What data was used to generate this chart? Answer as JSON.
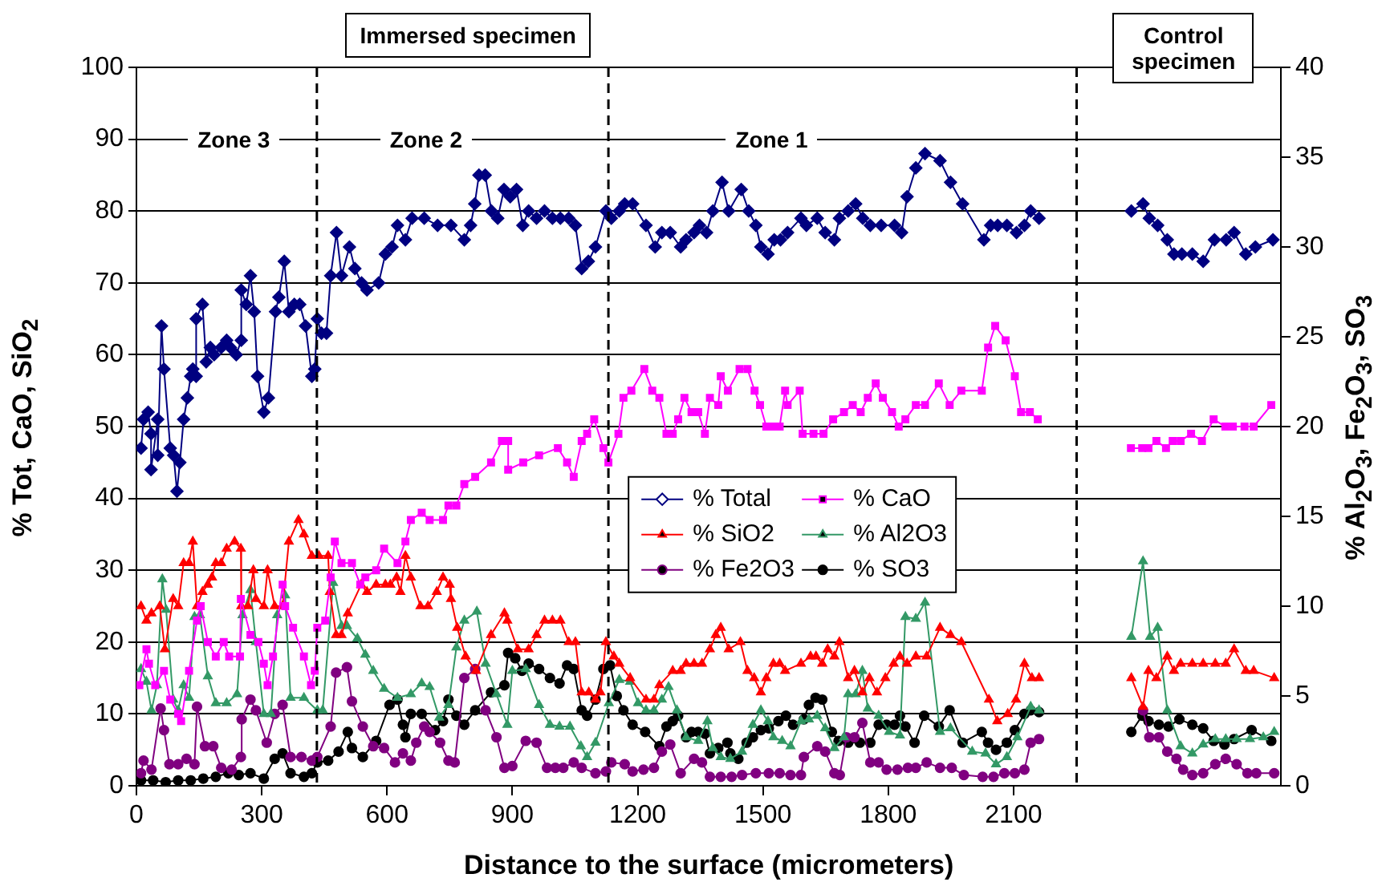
{
  "chart_data": {
    "type": "line",
    "xlabel": "Distance to the surface (micrometers)",
    "ylabel": "% Tot, CaO, SiO$_{2}$",
    "y2label": "% Al$_{2}$O$_{3}$, Fe$_{2}$O$_{3}$, SO$_{3}$",
    "xlim": [
      0,
      2740
    ],
    "xticks": [
      0,
      300,
      600,
      900,
      1200,
      1500,
      1800,
      2100
    ],
    "ylim": [
      0,
      100
    ],
    "yticks": [
      0,
      10,
      20,
      30,
      40,
      50,
      60,
      70,
      80,
      90,
      100
    ],
    "y2lim": [
      0,
      40
    ],
    "y2ticks": [
      0,
      5,
      10,
      15,
      20,
      25,
      30,
      35,
      40
    ],
    "grid": "y",
    "legend": "center",
    "ref_lines": [
      {
        "axis": "x",
        "value": 432,
        "color": "#000000",
        "line_style": "dashed"
      },
      {
        "axis": "x",
        "value": 1130,
        "color": "#000000",
        "line_style": "dashed"
      },
      {
        "axis": "x",
        "value": 2251,
        "color": "#000000",
        "line_style": "dashed"
      }
    ],
    "annotations": [
      "Immersed specimen",
      "Control specimen",
      "Zone 3",
      "Zone 2",
      "Zone 1"
    ],
    "series": [
      {
        "name": "% Total",
        "color": "#000080",
        "marker": "diamond",
        "x": [
          11,
          17,
          28,
          35,
          35,
          51,
          51,
          60,
          66,
          81,
          89,
          97,
          104,
          113,
          122,
          130,
          135,
          143,
          143,
          158,
          167,
          177,
          186,
          203,
          216,
          225,
          239,
          251,
          251,
          263,
          273,
          282,
          290,
          305,
          316,
          333,
          341,
          354,
          365,
          378,
          391,
          405,
          420,
          427,
          433,
          443,
          455,
          465,
          479,
          491,
          510,
          523,
          539,
          552,
          580,
          596,
          612,
          625,
          644,
          660,
          689,
          721,
          753,
          785,
          800,
          810,
          820,
          835,
          850,
          865,
          880,
          895,
          910,
          925,
          939,
          958,
          977,
          996,
          1015,
          1035,
          1051,
          1066,
          1082,
          1099,
          1124,
          1137,
          1156,
          1169,
          1188,
          1220,
          1242,
          1258,
          1278,
          1303,
          1316,
          1335,
          1348,
          1365,
          1380,
          1402,
          1418,
          1448,
          1466,
          1483,
          1495,
          1512,
          1527,
          1542,
          1559,
          1591,
          1604,
          1630,
          1649,
          1671,
          1683,
          1704,
          1722,
          1739,
          1757,
          1783,
          1815,
          1832,
          1845,
          1866,
          1888,
          1924,
          1949,
          1978,
          2029,
          2045,
          2062,
          2084,
          2107,
          2126,
          2141,
          2161,
          2250,
          2382,
          2410,
          2425,
          2445,
          2468,
          2484,
          2503,
          2528,
          2554,
          2581,
          2609,
          2628,
          2656,
          2679,
          2721
        ],
        "values": [
          47,
          51,
          52,
          49,
          44,
          51,
          46,
          64,
          58,
          47,
          46,
          41,
          45,
          51,
          54,
          57,
          58,
          57,
          65,
          67,
          59,
          61,
          60,
          61,
          62,
          61,
          60,
          62,
          69,
          67,
          71,
          66,
          57,
          52,
          54,
          66,
          68,
          73,
          66,
          67,
          67,
          64,
          57,
          58,
          65,
          63,
          63,
          71,
          77,
          71,
          75,
          72,
          70,
          69,
          70,
          74,
          75,
          78,
          76,
          79,
          79,
          78,
          78,
          76,
          78,
          81,
          85,
          85,
          80,
          79,
          83,
          82,
          83,
          78,
          80,
          79,
          80,
          79,
          79,
          79,
          78,
          72,
          73,
          75,
          80,
          79,
          80,
          81,
          81,
          78,
          75,
          77,
          77,
          75,
          76,
          77,
          78,
          77,
          80,
          84,
          80,
          83,
          80,
          78,
          75,
          74,
          76,
          76,
          77,
          79,
          78,
          79,
          77,
          76,
          79,
          80,
          81,
          79,
          78,
          78,
          78,
          77,
          82,
          86,
          88,
          87,
          84,
          81,
          76,
          78,
          78,
          78,
          77,
          78,
          80,
          79,
          null,
          80,
          81,
          79,
          78,
          76,
          74,
          74,
          74,
          73,
          76,
          76,
          77,
          74,
          75,
          76
        ]
      },
      {
        "name": "% CaO",
        "color": "#ff00ff",
        "marker": "square",
        "x": [
          7,
          24,
          30,
          45,
          66,
          81,
          100,
          107,
          126,
          145,
          154,
          171,
          190,
          209,
          222,
          248,
          250,
          273,
          292,
          305,
          314,
          327,
          350,
          356,
          375,
          401,
          418,
          427,
          433,
          452,
          465,
          475,
          491,
          516,
          536,
          548,
          574,
          593,
          625,
          644,
          657,
          683,
          702,
          734,
          747,
          766,
          785,
          811,
          849,
          875,
          890,
          890,
          926,
          964,
          1009,
          1031,
          1047,
          1066,
          1079,
          1096,
          1118,
          1130,
          1154,
          1166,
          1185,
          1216,
          1235,
          1252,
          1269,
          1284,
          1297,
          1312,
          1329,
          1345,
          1361,
          1373,
          1393,
          1399,
          1416,
          1444,
          1463,
          1480,
          1493,
          1508,
          1525,
          1540,
          1553,
          1559,
          1588,
          1595,
          1621,
          1645,
          1668,
          1694,
          1715,
          1734,
          1751,
          1770,
          1787,
          1809,
          1825,
          1841,
          1866,
          1888,
          1921,
          1947,
          1975,
          2024,
          2039,
          2056,
          2081,
          2103,
          2118,
          2139,
          2158,
          2250,
          2381,
          2408,
          2423,
          2442,
          2465,
          2481,
          2500,
          2525,
          2551,
          2579,
          2607,
          2625,
          2653,
          2675,
          2717
        ],
        "values": [
          14,
          19,
          17,
          14,
          16,
          12,
          10,
          9,
          16,
          23,
          25,
          20,
          18,
          20,
          18,
          18,
          26,
          21,
          20,
          17,
          14,
          18,
          28,
          25,
          22,
          18,
          14,
          16,
          22,
          23,
          29,
          34,
          31,
          31,
          28,
          29,
          30,
          33,
          31,
          34,
          37,
          38,
          37,
          37,
          39,
          39,
          42,
          43,
          45,
          48,
          48,
          44,
          45,
          46,
          47,
          45,
          43,
          48,
          49,
          51,
          47,
          45,
          49,
          54,
          55,
          58,
          55,
          54,
          49,
          49,
          51,
          54,
          52,
          52,
          49,
          54,
          53,
          57,
          55,
          58,
          58,
          55,
          53,
          50,
          50,
          50,
          55,
          53,
          55,
          49,
          49,
          49,
          51,
          52,
          53,
          52,
          54,
          56,
          54,
          52,
          50,
          51,
          53,
          53,
          56,
          53,
          55,
          55,
          61,
          64,
          62,
          57,
          52,
          52,
          51,
          null,
          47,
          47,
          47,
          48,
          47,
          48,
          48,
          49,
          48,
          51,
          50,
          50,
          50,
          50,
          53
        ]
      },
      {
        "name": "% SiO2",
        "color": "#ff0000",
        "marker": "triangle",
        "x": [
          11,
          24,
          36,
          56,
          68,
          88,
          100,
          113,
          126,
          135,
          145,
          158,
          171,
          181,
          190,
          203,
          216,
          235,
          250,
          251,
          267,
          280,
          286,
          305,
          314,
          331,
          350,
          365,
          388,
          401,
          420,
          437,
          459,
          463,
          478,
          491,
          506,
          538,
          552,
          574,
          596,
          608,
          623,
          632,
          644,
          657,
          680,
          698,
          719,
          734,
          750,
          753,
          768,
          788,
          813,
          849,
          881,
          888,
          913,
          939,
          958,
          977,
          996,
          1015,
          1035,
          1051,
          1066,
          1083,
          1099,
          1111,
          1124,
          1143,
          1156,
          1182,
          1220,
          1239,
          1252,
          1284,
          1303,
          1316,
          1335,
          1354,
          1373,
          1387,
          1399,
          1418,
          1446,
          1463,
          1479,
          1495,
          1508,
          1525,
          1540,
          1553,
          1591,
          1614,
          1627,
          1642,
          1655,
          1671,
          1683,
          1704,
          1719,
          1738,
          1755,
          1773,
          1793,
          1813,
          1828,
          1845,
          1866,
          1892,
          1924,
          1949,
          1975,
          2041,
          2061,
          2086,
          2106,
          2126,
          2144,
          2161,
          2250,
          2382,
          2410,
          2423,
          2442,
          2468,
          2484,
          2500,
          2528,
          2554,
          2583,
          2608,
          2628,
          2656,
          2675,
          2724
        ],
        "values": [
          25,
          23,
          24,
          25,
          19,
          26,
          25,
          31,
          31,
          34,
          25,
          27,
          28,
          29,
          31,
          31,
          33,
          34,
          33,
          25,
          25,
          30,
          26,
          25,
          30,
          25,
          25,
          34,
          37,
          35,
          32,
          32,
          32,
          27,
          21,
          21,
          24,
          28,
          27,
          28,
          28,
          28,
          29,
          27,
          32,
          29,
          25,
          25,
          27,
          29,
          28,
          26,
          22,
          18,
          16,
          21,
          24,
          23,
          19,
          19,
          21,
          23,
          23,
          23,
          20,
          20,
          13,
          13,
          12,
          13,
          20,
          18,
          17,
          15,
          12,
          12,
          14,
          16,
          16,
          17,
          17,
          17,
          19,
          21,
          22,
          19,
          20,
          16,
          15,
          13,
          15,
          17,
          17,
          16,
          17,
          18,
          18,
          17,
          19,
          18,
          20,
          15,
          16,
          13,
          15,
          13,
          15,
          17,
          18,
          17,
          18,
          18,
          22,
          21,
          20,
          12,
          9,
          10,
          12,
          17,
          15,
          15,
          null,
          15,
          11,
          16,
          15,
          18,
          16,
          17,
          17,
          17,
          17,
          17,
          19,
          16,
          16,
          15
        ]
      },
      {
        "name": "% Al2O3",
        "color": "#339966",
        "marker": "triangle",
        "axis": "y2",
        "x": [
          11,
          24,
          36,
          49,
          62,
          71,
          88,
          100,
          113,
          126,
          139,
          152,
          171,
          190,
          216,
          241,
          254,
          273,
          286,
          305,
          322,
          337,
          356,
          369,
          401,
          433,
          446,
          471,
          491,
          504,
          529,
          548,
          567,
          593,
          625,
          657,
          683,
          702,
          725,
          747,
          766,
          785,
          815,
          836,
          862,
          888,
          900,
          932,
          964,
          990,
          1013,
          1038,
          1064,
          1079,
          1099,
          1131,
          1156,
          1182,
          1201,
          1220,
          1239,
          1258,
          1274,
          1294,
          1316,
          1345,
          1367,
          1380,
          1399,
          1422,
          1450,
          1476,
          1495,
          1512,
          1525,
          1546,
          1566,
          1591,
          1610,
          1630,
          1649,
          1671,
          1694,
          1704,
          1722,
          1738,
          1751,
          1777,
          1802,
          1828,
          1841,
          1866,
          1888,
          1924,
          1949,
          2001,
          2033,
          2058,
          2084,
          2109,
          2141,
          2161,
          2250,
          2382,
          2410,
          2427,
          2445,
          2468,
          2500,
          2528,
          2554,
          2583,
          2608,
          2634,
          2666,
          2698,
          2724
        ],
        "values": [
          6.5,
          5.8,
          4.2,
          5.6,
          11.5,
          9.8,
          4.8,
          4.2,
          5.6,
          4.9,
          9.4,
          9.5,
          6.1,
          4.6,
          4.6,
          5.1,
          9.5,
          10.9,
          8.0,
          4.0,
          4.0,
          9.5,
          10.6,
          4.9,
          4.9,
          4.2,
          4.2,
          11.3,
          8.9,
          8.9,
          8.2,
          7.3,
          6.4,
          5.4,
          4.9,
          5.1,
          5.7,
          5.5,
          3.8,
          4.5,
          7.7,
          9.2,
          9.7,
          6.8,
          5.1,
          3.4,
          6.4,
          6.5,
          4.5,
          3.4,
          3.3,
          3.3,
          2.2,
          1.6,
          2.4,
          4.6,
          5.9,
          5.8,
          4.6,
          4.2,
          4.2,
          4.8,
          5.5,
          4.2,
          2.7,
          2.5,
          3.6,
          2.1,
          1.6,
          1.5,
          1.9,
          3.4,
          4.2,
          3.6,
          2.7,
          2.5,
          2.2,
          3.6,
          3.7,
          3.9,
          3.2,
          2.1,
          2.7,
          5.1,
          5.1,
          6.4,
          4.3,
          3.9,
          3.0,
          2.8,
          9.4,
          9.3,
          10.2,
          3.0,
          3.2,
          1.9,
          1.8,
          1.2,
          1.6,
          2.7,
          4.4,
          4.2,
          null,
          8.3,
          12.5,
          8.3,
          8.8,
          4.2,
          2.2,
          1.8,
          2.3,
          2.6,
          2.6,
          2.6,
          2.6,
          2.7,
          3.0
        ]
      },
      {
        "name": "% Fe2O3",
        "color": "#800080",
        "marker": "circle",
        "axis": "y2",
        "x": [
          11,
          17,
          36,
          58,
          66,
          79,
          100,
          120,
          139,
          145,
          164,
          184,
          203,
          228,
          250,
          252,
          273,
          286,
          312,
          331,
          350,
          369,
          395,
          420,
          433,
          465,
          478,
          504,
          516,
          542,
          567,
          593,
          619,
          638,
          657,
          670,
          689,
          702,
          727,
          747,
          762,
          785,
          811,
          836,
          862,
          881,
          900,
          932,
          958,
          983,
          1003,
          1022,
          1047,
          1066,
          1099,
          1124,
          1137,
          1169,
          1188,
          1214,
          1239,
          1258,
          1278,
          1303,
          1335,
          1354,
          1373,
          1399,
          1425,
          1450,
          1483,
          1514,
          1540,
          1566,
          1591,
          1598,
          1630,
          1649,
          1671,
          1684,
          1700,
          1719,
          1738,
          1757,
          1777,
          1796,
          1822,
          1847,
          1866,
          1892,
          1924,
          1952,
          1981,
          2026,
          2052,
          2078,
          2103,
          2126,
          2141,
          2161,
          2250,
          2410,
          2425,
          2448,
          2468,
          2490,
          2506,
          2528,
          2554,
          2583,
          2608,
          2634,
          2660,
          2681,
          2724
        ],
        "values": [
          0.7,
          1.4,
          0.9,
          4.3,
          3.1,
          1.2,
          1.2,
          1.5,
          1.2,
          4.4,
          2.2,
          2.2,
          1.0,
          0.9,
          1.6,
          3.7,
          4.8,
          4.2,
          2.4,
          4.0,
          4.5,
          1.6,
          1.6,
          1.4,
          1.6,
          3.3,
          6.3,
          6.6,
          4.7,
          3.3,
          2.2,
          2.1,
          1.3,
          1.8,
          1.4,
          2.4,
          3.3,
          3.0,
          2.4,
          1.4,
          1.3,
          6.0,
          6.5,
          4.2,
          2.7,
          1.0,
          1.1,
          2.5,
          2.4,
          1.0,
          1.0,
          1.0,
          1.3,
          1.0,
          0.7,
          0.8,
          1.3,
          1.2,
          0.8,
          0.9,
          1.0,
          1.9,
          2.3,
          0.7,
          1.5,
          1.3,
          0.5,
          0.5,
          0.5,
          0.6,
          0.7,
          0.7,
          0.7,
          0.6,
          0.6,
          1.6,
          2.2,
          1.9,
          0.7,
          0.6,
          2.7,
          2.7,
          3.5,
          1.3,
          1.3,
          0.9,
          0.9,
          1.0,
          1.0,
          1.3,
          1.0,
          1.0,
          0.6,
          0.5,
          0.5,
          0.7,
          0.7,
          0.9,
          2.4,
          2.6,
          null,
          4.2,
          2.7,
          2.7,
          1.9,
          1.5,
          0.9,
          0.6,
          0.7,
          1.2,
          1.5,
          1.2,
          0.7,
          0.7,
          0.7
        ]
      },
      {
        "name": "% SO3",
        "color": "#000000",
        "marker": "circle",
        "axis": "y2",
        "x": [
          11,
          40,
          70,
          100,
          130,
          160,
          190,
          220,
          245,
          273,
          305,
          331,
          350,
          369,
          401,
          420,
          433,
          459,
          484,
          506,
          516,
          542,
          574,
          606,
          625,
          638,
          644,
          657,
          683,
          715,
          734,
          747,
          766,
          785,
          811,
          849,
          881,
          890,
          907,
          923,
          939,
          964,
          990,
          1013,
          1031,
          1047,
          1066,
          1079,
          1099,
          1118,
          1134,
          1150,
          1166,
          1188,
          1218,
          1252,
          1269,
          1284,
          1297,
          1316,
          1329,
          1345,
          1361,
          1373,
          1393,
          1415,
          1422,
          1441,
          1461,
          1476,
          1495,
          1514,
          1537,
          1555,
          1572,
          1598,
          1610,
          1626,
          1642,
          1665,
          1681,
          1704,
          1732,
          1757,
          1777,
          1796,
          1815,
          1828,
          1841,
          1863,
          1886,
          1921,
          1947,
          1978,
          2024,
          2039,
          2058,
          2084,
          2103,
          2126,
          2141,
          2161,
          2250,
          2382,
          2408,
          2423,
          2448,
          2471,
          2497,
          2528,
          2554,
          2579,
          2605,
          2628,
          2670,
          2717
        ],
        "values": [
          0.3,
          0.3,
          0.2,
          0.3,
          0.3,
          0.4,
          0.5,
          0.7,
          0.6,
          0.7,
          0.4,
          1.5,
          1.8,
          0.7,
          0.5,
          0.7,
          1.3,
          1.4,
          1.9,
          3.0,
          2.1,
          1.6,
          2.5,
          4.5,
          4.8,
          3.4,
          2.7,
          4.0,
          4.0,
          3.1,
          3.6,
          4.8,
          3.9,
          3.4,
          4.2,
          5.2,
          5.6,
          7.4,
          7.1,
          6.4,
          6.8,
          6.5,
          6.0,
          5.7,
          6.7,
          6.5,
          4.2,
          3.9,
          4.8,
          6.5,
          6.7,
          5.0,
          4.2,
          3.4,
          3.0,
          2.2,
          3.3,
          3.6,
          3.9,
          2.7,
          3.0,
          3.0,
          2.9,
          1.8,
          2.1,
          2.4,
          1.8,
          1.5,
          2.4,
          2.7,
          3.1,
          3.2,
          3.6,
          3.9,
          3.4,
          3.7,
          4.5,
          4.9,
          4.8,
          3.0,
          2.5,
          2.4,
          2.4,
          2.4,
          3.4,
          3.4,
          3.4,
          3.9,
          3.3,
          2.4,
          3.9,
          3.3,
          4.2,
          2.4,
          3.0,
          2.4,
          2.0,
          2.4,
          3.1,
          4.0,
          4.2,
          4.1,
          null,
          3.0,
          3.9,
          3.6,
          3.4,
          3.3,
          3.7,
          3.4,
          3.2,
          2.5,
          2.3,
          2.6,
          3.1,
          2.5
        ]
      }
    ]
  }
}
